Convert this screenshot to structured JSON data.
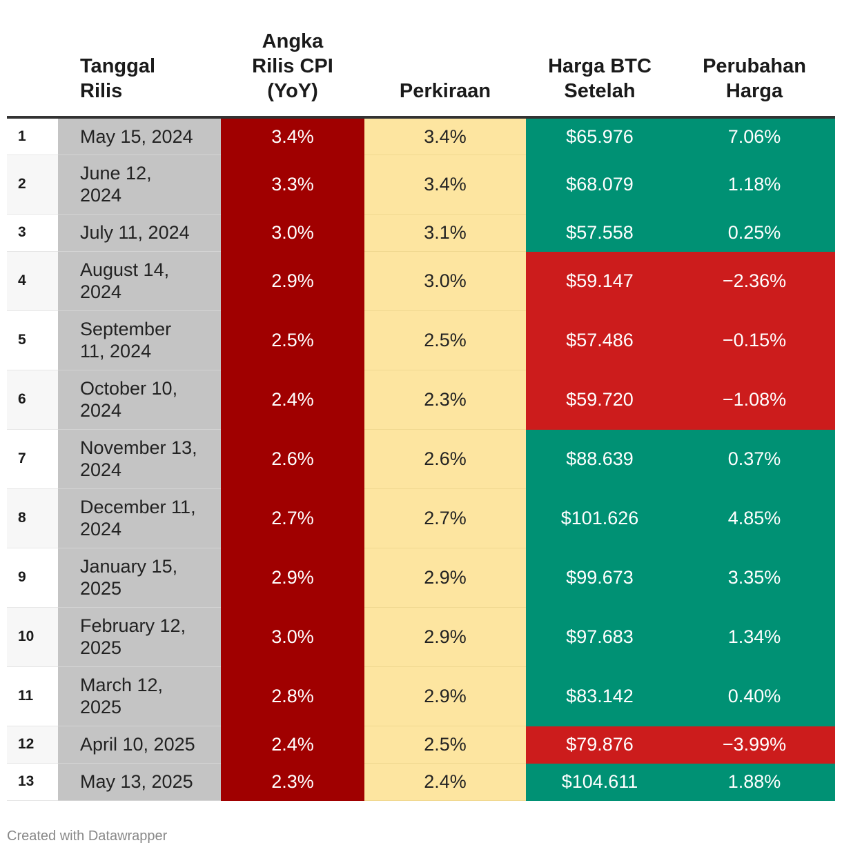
{
  "columns": {
    "index": "",
    "date": [
      "Tanggal",
      "Rilis"
    ],
    "cpi": [
      "Angka",
      "Rilis CPI",
      "(YoY)"
    ],
    "forecast": [
      "Perkiraan"
    ],
    "btc": [
      "Harga BTC",
      "Setelah"
    ],
    "change": [
      "Perubahan",
      "Harga"
    ]
  },
  "rows": [
    {
      "idx": "1",
      "date": "May 15, 2024",
      "cpi": "3.4%",
      "forecast": "3.4%",
      "btc": "$65.976",
      "change": "7.06%",
      "dir": "pos"
    },
    {
      "idx": "2",
      "date": "June 12, 2024",
      "cpi": "3.3%",
      "forecast": "3.4%",
      "btc": "$68.079",
      "change": "1.18%",
      "dir": "pos"
    },
    {
      "idx": "3",
      "date": "July 11, 2024",
      "cpi": "3.0%",
      "forecast": "3.1%",
      "btc": "$57.558",
      "change": "0.25%",
      "dir": "pos"
    },
    {
      "idx": "4",
      "date": "August 14, 2024",
      "cpi": "2.9%",
      "forecast": "3.0%",
      "btc": "$59.147",
      "change": "−2.36%",
      "dir": "neg"
    },
    {
      "idx": "5",
      "date": "September 11, 2024",
      "cpi": "2.5%",
      "forecast": "2.5%",
      "btc": "$57.486",
      "change": "−0.15%",
      "dir": "neg"
    },
    {
      "idx": "6",
      "date": "October 10, 2024",
      "cpi": "2.4%",
      "forecast": "2.3%",
      "btc": "$59.720",
      "change": "−1.08%",
      "dir": "neg"
    },
    {
      "idx": "7",
      "date": "November 13, 2024",
      "cpi": "2.6%",
      "forecast": "2.6%",
      "btc": "$88.639",
      "change": "0.37%",
      "dir": "pos"
    },
    {
      "idx": "8",
      "date": "December 11, 2024",
      "cpi": "2.7%",
      "forecast": "2.7%",
      "btc": "$101.626",
      "change": "4.85%",
      "dir": "pos"
    },
    {
      "idx": "9",
      "date": "January 15, 2025",
      "cpi": "2.9%",
      "forecast": "2.9%",
      "btc": "$99.673",
      "change": "3.35%",
      "dir": "pos"
    },
    {
      "idx": "10",
      "date": "February 12, 2025",
      "cpi": "3.0%",
      "forecast": "2.9%",
      "btc": "$97.683",
      "change": "1.34%",
      "dir": "pos"
    },
    {
      "idx": "11",
      "date": "March 12, 2025",
      "cpi": "2.8%",
      "forecast": "2.9%",
      "btc": "$83.142",
      "change": "0.40%",
      "dir": "pos"
    },
    {
      "idx": "12",
      "date": "April 10, 2025",
      "cpi": "2.4%",
      "forecast": "2.5%",
      "btc": "$79.876",
      "change": "−3.99%",
      "dir": "neg"
    },
    {
      "idx": "13",
      "date": "May 13, 2025",
      "cpi": "2.3%",
      "forecast": "2.4%",
      "btc": "$104.611",
      "change": "1.88%",
      "dir": "pos"
    }
  ],
  "colors": {
    "date_bg": "#c4c4c4",
    "cpi_bg": "#a00000",
    "forecast_bg": "#fde5a0",
    "positive_bg": "#009174",
    "negative_bg": "#cc1c1c"
  },
  "chart_data": {
    "type": "table",
    "columns": [
      "",
      "Tanggal Rilis",
      "Angka Rilis CPI (YoY)",
      "Perkiraan",
      "Harga BTC Setelah",
      "Perubahan Harga"
    ],
    "rows": [
      [
        "1",
        "May 15, 2024",
        "3.4%",
        "3.4%",
        "$65.976",
        "7.06%"
      ],
      [
        "2",
        "June 12, 2024",
        "3.3%",
        "3.4%",
        "$68.079",
        "1.18%"
      ],
      [
        "3",
        "July 11, 2024",
        "3.0%",
        "3.1%",
        "$57.558",
        "0.25%"
      ],
      [
        "4",
        "August 14, 2024",
        "2.9%",
        "3.0%",
        "$59.147",
        "−2.36%"
      ],
      [
        "5",
        "September 11, 2024",
        "2.5%",
        "2.5%",
        "$57.486",
        "−0.15%"
      ],
      [
        "6",
        "October 10, 2024",
        "2.4%",
        "2.3%",
        "$59.720",
        "−1.08%"
      ],
      [
        "7",
        "November 13, 2024",
        "2.6%",
        "2.6%",
        "$88.639",
        "0.37%"
      ],
      [
        "8",
        "December 11, 2024",
        "2.7%",
        "2.7%",
        "$101.626",
        "4.85%"
      ],
      [
        "9",
        "January 15, 2025",
        "2.9%",
        "2.9%",
        "$99.673",
        "3.35%"
      ],
      [
        "10",
        "February 12, 2025",
        "3.0%",
        "2.9%",
        "$97.683",
        "1.34%"
      ],
      [
        "11",
        "March 12, 2025",
        "2.8%",
        "2.9%",
        "$83.142",
        "0.40%"
      ],
      [
        "12",
        "April 10, 2025",
        "2.4%",
        "2.5%",
        "$79.876",
        "−3.99%"
      ],
      [
        "13",
        "May 13, 2025",
        "2.3%",
        "2.4%",
        "$104.611",
        "1.88%"
      ]
    ]
  },
  "footer": {
    "credit": "Created with Datawrapper"
  }
}
